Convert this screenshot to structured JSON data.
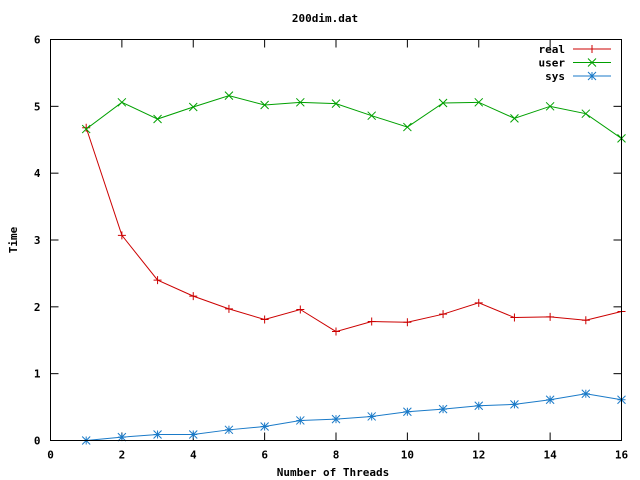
{
  "chart_data": {
    "type": "line",
    "title": "200dim.dat",
    "xlabel": "Number of Threads",
    "ylabel": "Time",
    "xlim": [
      0,
      16
    ],
    "ylim": [
      0,
      6
    ],
    "xticks": [
      0,
      2,
      4,
      6,
      8,
      10,
      12,
      14,
      16
    ],
    "yticks": [
      0,
      1,
      2,
      3,
      4,
      5,
      6
    ],
    "grid": false,
    "legend_position": "top-right",
    "x": [
      1,
      2,
      3,
      4,
      5,
      6,
      7,
      8,
      9,
      10,
      11,
      12,
      13,
      14,
      15,
      16
    ],
    "series": [
      {
        "name": "real",
        "color": "#cc0000",
        "marker": "plus",
        "values": [
          4.68,
          3.07,
          2.4,
          2.16,
          1.97,
          1.81,
          1.96,
          1.63,
          1.78,
          1.77,
          1.89,
          2.06,
          1.84,
          1.85,
          1.8,
          1.93
        ]
      },
      {
        "name": "user",
        "color": "#00a000",
        "marker": "cross",
        "values": [
          4.66,
          5.06,
          4.81,
          4.99,
          5.16,
          5.02,
          5.06,
          5.04,
          4.86,
          4.69,
          5.05,
          5.06,
          4.82,
          5.0,
          4.89,
          4.52
        ]
      },
      {
        "name": "sys",
        "color": "#1a7ac8",
        "marker": "star",
        "values": [
          0.0,
          0.05,
          0.09,
          0.09,
          0.16,
          0.21,
          0.3,
          0.32,
          0.36,
          0.43,
          0.47,
          0.52,
          0.54,
          0.61,
          0.7,
          0.61
        ]
      }
    ]
  }
}
